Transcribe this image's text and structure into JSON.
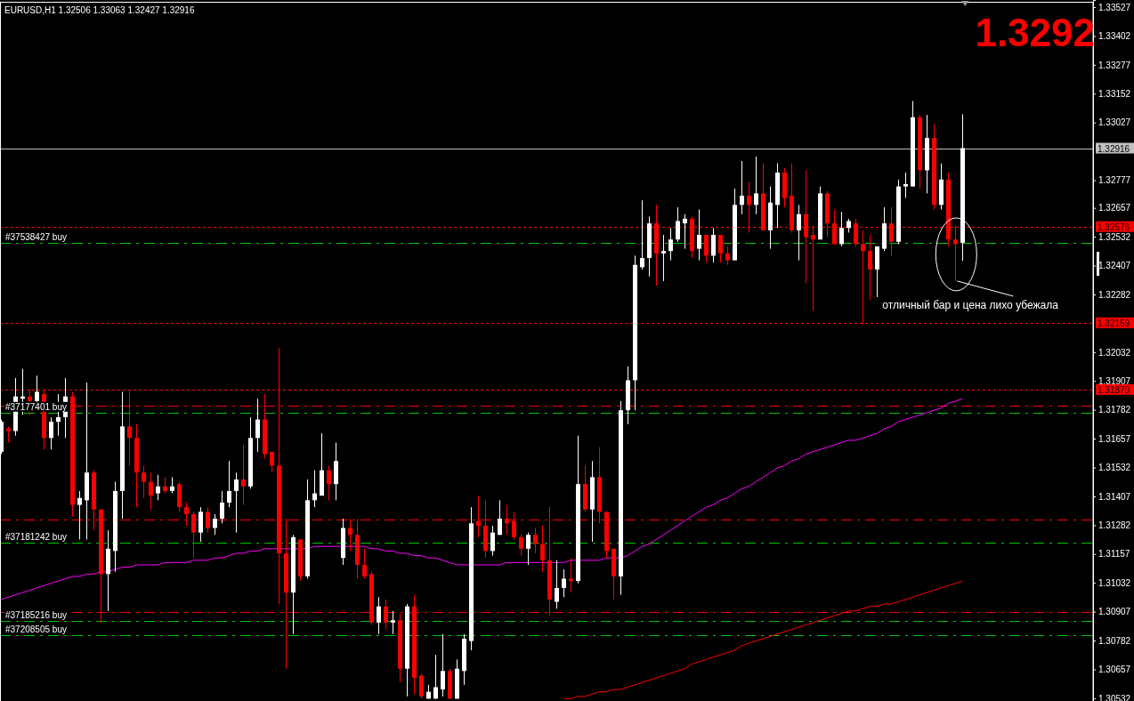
{
  "chart_data": {
    "type": "candlestick",
    "title": "EURUSD,H1  1.32506 1.33063 1.32427 1.32916",
    "categories": [
      null,
      null,
      null,
      null,
      null,
      null,
      null,
      null,
      null,
      null,
      null,
      null,
      null,
      null,
      null,
      null,
      null,
      null,
      null,
      null,
      null,
      null,
      null,
      null,
      null,
      null,
      null,
      null,
      null,
      null,
      null,
      null,
      null,
      null,
      null,
      null,
      null,
      null,
      null,
      null,
      null,
      null,
      null,
      null,
      null,
      null,
      null,
      null,
      null,
      null,
      null,
      null,
      null,
      null,
      null,
      null,
      null,
      null,
      null,
      null,
      null,
      null,
      null,
      null,
      null,
      null,
      null,
      null,
      null,
      null,
      null,
      null,
      null,
      null,
      null,
      null,
      null,
      null,
      null,
      null,
      null,
      null,
      null,
      null,
      null,
      null,
      null,
      null,
      null,
      null,
      null,
      null,
      null,
      null,
      null,
      null,
      null,
      null,
      null,
      null,
      null,
      null,
      null,
      null,
      null,
      null,
      null,
      null,
      null,
      null,
      null,
      null,
      null,
      null,
      null,
      null,
      null,
      null,
      null,
      null,
      null,
      null,
      null,
      null,
      null,
      null,
      null,
      null,
      null,
      null,
      null,
      null,
      null,
      null,
      null,
      null
    ],
    "ohlc": [
      [
        1.316,
        1.3174,
        1.3159,
        1.3173
      ],
      [
        1.317,
        1.3171,
        1.3164,
        1.3169
      ],
      [
        1.3169,
        1.3192,
        1.3167,
        1.3184
      ],
      [
        1.3183,
        1.3196,
        1.3176,
        1.3184
      ],
      [
        1.3184,
        1.3187,
        1.3176,
        1.3182
      ],
      [
        1.3182,
        1.3193,
        1.3178,
        1.3186
      ],
      [
        1.3185,
        1.3187,
        1.3161,
        1.3166
      ],
      [
        1.3166,
        1.3175,
        1.3161,
        1.3173
      ],
      [
        1.3173,
        1.3185,
        1.3167,
        1.3175
      ],
      [
        1.3175,
        1.3192,
        1.3166,
        1.3184
      ],
      [
        1.3184,
        1.3186,
        1.3132,
        1.3137
      ],
      [
        1.3137,
        1.3143,
        1.3122,
        1.314
      ],
      [
        1.3139,
        1.319,
        1.3122,
        1.3151
      ],
      [
        1.3151,
        1.3152,
        1.3126,
        1.3135
      ],
      [
        1.3135,
        1.3135,
        1.3086,
        1.3107
      ],
      [
        1.3107,
        1.3126,
        1.3091,
        1.3118
      ],
      [
        1.3117,
        1.3147,
        1.3108,
        1.3143
      ],
      [
        1.3143,
        1.3186,
        1.3131,
        1.3171
      ],
      [
        1.3171,
        1.3187,
        1.3154,
        1.3166
      ],
      [
        1.3166,
        1.3172,
        1.3136,
        1.3151
      ],
      [
        1.3151,
        1.3154,
        1.314,
        1.3147
      ],
      [
        1.3147,
        1.3151,
        1.3135,
        1.3141
      ],
      [
        1.3142,
        1.315,
        1.3139,
        1.3145
      ],
      [
        1.3145,
        1.3149,
        1.3142,
        1.3143
      ],
      [
        1.3143,
        1.3149,
        1.3142,
        1.3145
      ],
      [
        1.3146,
        1.3147,
        1.3134,
        1.3136
      ],
      [
        1.3136,
        1.3138,
        1.3128,
        1.3133
      ],
      [
        1.3133,
        1.3134,
        1.3114,
        1.3125
      ],
      [
        1.3125,
        1.3136,
        1.3121,
        1.3134
      ],
      [
        1.3134,
        1.3136,
        1.3125,
        1.3127
      ],
      [
        1.3127,
        1.3133,
        1.3124,
        1.3131
      ],
      [
        1.3131,
        1.3143,
        1.3129,
        1.3138
      ],
      [
        1.3138,
        1.3156,
        1.3136,
        1.3143
      ],
      [
        1.3143,
        1.3151,
        1.3125,
        1.3148
      ],
      [
        1.3148,
        1.3163,
        1.3137,
        1.3145
      ],
      [
        1.3145,
        1.3175,
        1.3144,
        1.3166
      ],
      [
        1.3166,
        1.3183,
        1.316,
        1.3174
      ],
      [
        1.3174,
        1.3185,
        1.3157,
        1.3159
      ],
      [
        1.316,
        1.316,
        1.3151,
        1.3154
      ],
      [
        1.3154,
        1.3205,
        1.3094,
        1.3116
      ],
      [
        1.3116,
        1.3131,
        1.3066,
        1.3099
      ],
      [
        1.3099,
        1.3124,
        1.3081,
        1.3123
      ],
      [
        1.3122,
        1.3122,
        1.3104,
        1.3106
      ],
      [
        1.3106,
        1.3148,
        1.3105,
        1.3139
      ],
      [
        1.3139,
        1.3152,
        1.3136,
        1.3142
      ],
      [
        1.3141,
        1.3168,
        1.3141,
        1.3152
      ],
      [
        1.3152,
        1.3154,
        1.3139,
        1.3146
      ],
      [
        1.3146,
        1.3164,
        1.3139,
        1.3156
      ],
      [
        1.3114,
        1.3131,
        1.3111,
        1.3127
      ],
      [
        1.3127,
        1.3131,
        1.3117,
        1.3124
      ],
      [
        1.3124,
        1.3131,
        1.3105,
        1.3111
      ],
      [
        1.3111,
        1.3118,
        1.3105,
        1.3106
      ],
      [
        1.3107,
        1.3108,
        1.3085,
        1.3086
      ],
      [
        1.3086,
        1.3097,
        1.3081,
        1.3093
      ],
      [
        1.3093,
        1.3096,
        1.3083,
        1.3086
      ],
      [
        1.3086,
        1.3091,
        1.3081,
        1.3087
      ],
      [
        1.3087,
        1.309,
        1.306,
        1.3066
      ],
      [
        1.3066,
        1.3094,
        1.3054,
        1.3093
      ],
      [
        1.3093,
        1.3098,
        1.3055,
        1.3062
      ],
      [
        1.3063,
        1.3064,
        1.3053,
        1.3054
      ],
      [
        1.3053,
        1.3059,
        1.3053,
        1.3056
      ],
      [
        1.3053,
        1.3072,
        1.3053,
        1.3058
      ],
      [
        1.3057,
        1.3081,
        1.3054,
        1.3065
      ],
      [
        1.3065,
        1.3066,
        1.3053,
        1.3053
      ],
      [
        1.3053,
        1.307,
        1.3053,
        1.3066
      ],
      [
        1.3065,
        1.3081,
        1.3059,
        1.3079
      ],
      [
        1.3078,
        1.3136,
        1.3074,
        1.3129
      ],
      [
        1.313,
        1.3141,
        1.3123,
        1.3128
      ],
      [
        1.3128,
        1.3139,
        1.3114,
        1.3117
      ],
      [
        1.3117,
        1.3128,
        1.3115,
        1.3125
      ],
      [
        1.3124,
        1.3139,
        1.3124,
        1.3131
      ],
      [
        1.3131,
        1.3137,
        1.3124,
        1.3129
      ],
      [
        1.313,
        1.3134,
        1.3122,
        1.3123
      ],
      [
        1.3123,
        1.3124,
        1.3115,
        1.3118
      ],
      [
        1.3118,
        1.3125,
        1.3111,
        1.3124
      ],
      [
        1.3124,
        1.3127,
        1.3116,
        1.312
      ],
      [
        1.312,
        1.3128,
        1.3108,
        1.3113
      ],
      [
        1.3113,
        1.3136,
        1.3089,
        1.3096
      ],
      [
        1.3095,
        1.3113,
        1.3092,
        1.3101
      ],
      [
        1.3101,
        1.3109,
        1.3097,
        1.3105
      ],
      [
        1.3105,
        1.3114,
        1.3099,
        1.3104
      ],
      [
        1.3104,
        1.3167,
        1.3103,
        1.3146
      ],
      [
        1.3146,
        1.3154,
        1.3134,
        1.3135
      ],
      [
        1.3135,
        1.3156,
        1.3121,
        1.3149
      ],
      [
        1.3149,
        1.3162,
        1.3129,
        1.3134
      ],
      [
        1.3134,
        1.3134,
        1.3114,
        1.3117
      ],
      [
        1.3118,
        1.3118,
        1.3096,
        1.3106
      ],
      [
        1.3106,
        1.3182,
        1.3098,
        1.3178
      ],
      [
        1.3178,
        1.3197,
        1.3172,
        1.3191
      ],
      [
        1.3191,
        1.3245,
        1.3178,
        1.3241
      ],
      [
        1.324,
        1.3269,
        1.3239,
        1.3244
      ],
      [
        1.3244,
        1.3262,
        1.3236,
        1.3259
      ],
      [
        1.3259,
        1.3267,
        1.3232,
        1.3246
      ],
      [
        1.3246,
        1.3254,
        1.3234,
        1.3247
      ],
      [
        1.3247,
        1.3257,
        1.3243,
        1.3252
      ],
      [
        1.3252,
        1.3266,
        1.3251,
        1.326
      ],
      [
        1.3259,
        1.3263,
        1.3248,
        1.3261
      ],
      [
        1.3261,
        1.3262,
        1.3244,
        1.3247
      ],
      [
        1.3248,
        1.3265,
        1.3243,
        1.3254
      ],
      [
        1.3254,
        1.3254,
        1.3242,
        1.3245
      ],
      [
        1.3245,
        1.3257,
        1.3242,
        1.3254
      ],
      [
        1.3254,
        1.3254,
        1.3242,
        1.3246
      ],
      [
        1.3246,
        1.3249,
        1.3241,
        1.3243
      ],
      [
        1.3243,
        1.3274,
        1.3243,
        1.3267
      ],
      [
        1.3267,
        1.3286,
        1.3263,
        1.3271
      ],
      [
        1.3271,
        1.3277,
        1.3255,
        1.3267
      ],
      [
        1.3267,
        1.3288,
        1.3263,
        1.3272
      ],
      [
        1.3272,
        1.3285,
        1.3256,
        1.3256
      ],
      [
        1.3256,
        1.3275,
        1.3248,
        1.3268
      ],
      [
        1.3267,
        1.3285,
        1.3257,
        1.3281
      ],
      [
        1.3281,
        1.3283,
        1.3266,
        1.327
      ],
      [
        1.3271,
        1.3285,
        1.3255,
        1.3256
      ],
      [
        1.3256,
        1.3267,
        1.3243,
        1.3263
      ],
      [
        1.3263,
        1.3282,
        1.3233,
        1.3253
      ],
      [
        1.3254,
        1.3258,
        1.3221,
        1.3252
      ],
      [
        1.3252,
        1.3275,
        1.3252,
        1.3272
      ],
      [
        1.3272,
        1.3273,
        1.3253,
        1.3259
      ],
      [
        1.3259,
        1.3265,
        1.325,
        1.325
      ],
      [
        1.325,
        1.3264,
        1.3249,
        1.3257
      ],
      [
        1.3257,
        1.3261,
        1.3255,
        1.326
      ],
      [
        1.3259,
        1.3261,
        1.3249,
        1.325
      ],
      [
        1.325,
        1.3256,
        1.3215,
        1.3247
      ],
      [
        1.3247,
        1.3254,
        1.3226,
        1.3239
      ],
      [
        1.3239,
        1.3249,
        1.3227,
        1.3249
      ],
      [
        1.3248,
        1.3266,
        1.3247,
        1.3259
      ],
      [
        1.3259,
        1.3266,
        1.3245,
        1.3251
      ],
      [
        1.3251,
        1.3278,
        1.325,
        1.3275
      ],
      [
        1.3275,
        1.3281,
        1.327,
        1.3276
      ],
      [
        1.3275,
        1.3312,
        1.3275,
        1.3305
      ],
      [
        1.3305,
        1.3306,
        1.3274,
        1.3282
      ],
      [
        1.3282,
        1.3306,
        1.3272,
        1.3296
      ],
      [
        1.3296,
        1.3302,
        1.3265,
        1.3267
      ],
      [
        1.3267,
        1.3285,
        1.3265,
        1.3278
      ],
      [
        1.3278,
        1.3281,
        1.3249,
        1.3252
      ],
      [
        1.3252,
        1.3258,
        1.3234,
        1.325
      ],
      [
        1.32506,
        1.33063,
        1.32427,
        1.32916
      ]
    ],
    "colors": [
      "#ffffff",
      "#ff0000",
      "#ffffff",
      "#ffffff",
      "#ff0000",
      "#ffffff",
      "#ff0000",
      "#ffffff",
      "#ffffff",
      "#ffffff",
      "#ff0000",
      "#ffffff",
      "#ffffff",
      "#ff0000",
      "#ff0000",
      "#ffffff",
      "#ffffff",
      "#ffffff",
      "#ff0000",
      "#ff0000",
      "#ff0000",
      "#ff0000",
      "#ffffff",
      "#ff0000",
      "#ffffff",
      "#ff0000",
      "#ff0000",
      "#ff0000",
      "#ffffff",
      "#ff0000",
      "#ffffff",
      "#ffffff",
      "#ffffff",
      "#ffffff",
      "#ff0000",
      "#ffffff",
      "#ffffff",
      "#ff0000",
      "#ff0000",
      "#ff0000",
      "#ff0000",
      "#ffffff",
      "#ff0000",
      "#ffffff",
      "#ffffff",
      "#ffffff",
      "#ff0000",
      "#ffffff",
      "#ffffff",
      "#ff0000",
      "#ff0000",
      "#ff0000",
      "#ff0000",
      "#ffffff",
      "#ff0000",
      "#ffffff",
      "#ff0000",
      "#ffffff",
      "#ff0000",
      "#ff0000",
      "#ffffff",
      "#ffffff",
      "#ffffff",
      "#ff0000",
      "#ffffff",
      "#ffffff",
      "#ffffff",
      "#ff0000",
      "#ff0000",
      "#ffffff",
      "#ffffff",
      "#ff0000",
      "#ff0000",
      "#ff0000",
      "#ffffff",
      "#ff0000",
      "#ff0000",
      "#ff0000",
      "#ffffff",
      "#ffffff",
      "#ff0000",
      "#ffffff",
      "#ff0000",
      "#ffffff",
      "#ff0000",
      "#ff0000",
      "#ff0000",
      "#ffffff",
      "#ffffff",
      "#ffffff",
      "#ffffff",
      "#ffffff",
      "#ff0000",
      "#ffffff",
      "#ffffff",
      "#ffffff",
      "#ffffff",
      "#ff0000",
      "#ffffff",
      "#ff0000",
      "#ffffff",
      "#ff0000",
      "#ff0000",
      "#ffffff",
      "#ffffff",
      "#ff0000",
      "#ffffff",
      "#ff0000",
      "#ffffff",
      "#ffffff",
      "#ff0000",
      "#ff0000",
      "#ffffff",
      "#ff0000",
      "#ff0000",
      "#ffffff",
      "#ff0000",
      "#ff0000",
      "#ffffff",
      "#ffffff",
      "#ff0000",
      "#ff0000",
      "#ff0000",
      "#ffffff",
      "#ffffff",
      "#ff0000",
      "#ffffff",
      "#ffffff",
      "#ffffff",
      "#ff0000",
      "#ffffff",
      "#ff0000",
      "#ffffff",
      "#ff0000",
      "#ff0000",
      "#ffffff"
    ],
    "series": [
      {
        "type": "line",
        "color": "#ff00ff",
        "values": [
          1.3096,
          1.3097,
          1.3098,
          1.3099,
          1.31,
          1.3101,
          1.3102,
          1.3103,
          1.3104,
          1.3105,
          1.3106,
          1.3106,
          1.3107,
          1.3107,
          1.3108,
          1.3108,
          1.3109,
          1.311,
          1.311,
          1.3111,
          1.3111,
          1.3111,
          1.3111,
          1.3112,
          1.3112,
          1.3112,
          1.3112,
          1.3113,
          1.3113,
          1.3113,
          1.3114,
          1.3114,
          1.3115,
          1.3116,
          1.3116,
          1.3117,
          1.3117,
          1.3118,
          1.3118,
          1.3118,
          1.3118,
          1.3118,
          1.3118,
          1.3118,
          1.3119,
          1.3119,
          1.3119,
          1.3119,
          1.3119,
          1.3119,
          1.3119,
          1.3119,
          1.3118,
          1.3118,
          1.3117,
          1.3117,
          1.3116,
          1.3116,
          1.3115,
          1.3115,
          1.3114,
          1.3114,
          1.3113,
          1.3112,
          1.3111,
          1.3111,
          1.3111,
          1.3111,
          1.3111,
          1.3111,
          1.3111,
          1.3112,
          1.3112,
          1.3112,
          1.3112,
          1.3112,
          1.3112,
          1.3112,
          1.3112,
          1.3112,
          1.3113,
          1.3113,
          1.3113,
          1.3113,
          1.3113,
          1.3114,
          1.3114,
          1.3114,
          1.3115,
          1.3117,
          1.3119,
          1.312,
          1.3122,
          1.3124,
          1.3126,
          1.3128,
          1.313,
          1.3132,
          1.3134,
          1.3136,
          1.3137,
          1.3139,
          1.314,
          1.3142,
          1.3144,
          1.3145,
          1.3147,
          1.3149,
          1.3151,
          1.3153,
          1.3154,
          1.3156,
          1.3157,
          1.3159,
          1.316,
          1.3161,
          1.3162,
          1.3163,
          1.3164,
          1.3165,
          1.3165,
          1.3166,
          1.3167,
          1.3168,
          1.317,
          1.3171,
          1.3173,
          1.3174,
          1.3175,
          1.3176,
          1.3177,
          1.3178,
          1.3179,
          1.3181,
          1.3182,
          1.3183
        ]
      },
      {
        "type": "line",
        "color": "#ff0000",
        "values": [
          null,
          null,
          null,
          null,
          null,
          null,
          null,
          null,
          null,
          null,
          null,
          null,
          null,
          null,
          null,
          null,
          null,
          null,
          null,
          null,
          null,
          null,
          null,
          null,
          null,
          null,
          null,
          null,
          null,
          null,
          null,
          null,
          null,
          null,
          null,
          null,
          null,
          null,
          null,
          null,
          null,
          null,
          null,
          null,
          null,
          null,
          null,
          null,
          null,
          null,
          null,
          null,
          null,
          null,
          null,
          null,
          null,
          null,
          null,
          null,
          null,
          null,
          null,
          null,
          null,
          null,
          null,
          null,
          null,
          null,
          null,
          null,
          null,
          null,
          null,
          null,
          null,
          null,
          null,
          1.3053,
          1.3053,
          1.3054,
          1.3054,
          1.3055,
          1.3056,
          1.3056,
          1.3057,
          1.3057,
          1.3058,
          1.3059,
          1.306,
          1.3061,
          1.3062,
          1.3063,
          1.3064,
          1.3065,
          1.3066,
          1.3068,
          1.3069,
          1.307,
          1.3071,
          1.3072,
          1.3073,
          1.3074,
          1.3076,
          1.3077,
          1.3078,
          1.3079,
          1.308,
          1.3081,
          1.3082,
          1.3083,
          1.3084,
          1.3085,
          1.3086,
          1.3087,
          1.3088,
          1.3089,
          1.309,
          1.3091,
          1.3091,
          1.3092,
          1.3093,
          1.3093,
          1.3094,
          1.3094,
          1.3095,
          1.3096,
          1.3097,
          1.3098,
          1.3099,
          1.31,
          1.3101,
          1.3102,
          1.3103,
          1.3104
        ]
      }
    ],
    "ylim": [
      1.3052,
      1.33558
    ],
    "yticks": [
      1.33527,
      1.33402,
      1.33277,
      1.33152,
      1.33027,
      1.32777,
      1.32657,
      1.32532,
      1.32407,
      1.32282,
      1.32032,
      1.31907,
      1.31782,
      1.31657,
      1.31532,
      1.31407,
      1.31282,
      1.31157,
      1.31032,
      1.30907,
      1.30782,
      1.30657,
      1.30532
    ],
    "tick_labels": "y",
    "ref_lines": [
      {
        "axis": "y",
        "value": 1.32916,
        "label": "1.32916",
        "color": "#c0c0c0",
        "line_style": "solid"
      },
      {
        "axis": "y",
        "value": 1.32576,
        "label": "1.32576",
        "color": "#ff0000",
        "line_style": "dotted"
      },
      {
        "axis": "y",
        "value": 1.32506,
        "label": "#37538427 buy",
        "color": "#00c800",
        "line_style": "dashdot"
      },
      {
        "axis": "y",
        "value": 1.32159,
        "label": "1.32159",
        "color": "#ff0000",
        "line_style": "dotted"
      },
      {
        "axis": "y",
        "value": 1.3187,
        "label": "1.31870",
        "color": "#ff0000",
        "line_style": "dotted"
      },
      {
        "axis": "y",
        "value": 1.31801,
        "color": "#ff0000",
        "line_style": "dashdot"
      },
      {
        "axis": "y",
        "value": 1.3177,
        "label": "#37177401 buy",
        "color": "#00c800",
        "line_style": "dashdot"
      },
      {
        "axis": "y",
        "value": 1.31305,
        "color": "#ff0000",
        "line_style": "dashdot"
      },
      {
        "axis": "y",
        "value": 1.31205,
        "label": "#37181242 buy",
        "color": "#00c800",
        "line_style": "dashdot"
      },
      {
        "axis": "y",
        "value": 1.30905,
        "color": "#ff0000",
        "line_style": "dashdot"
      },
      {
        "axis": "y",
        "value": 1.30867,
        "label": "#37185216 buy",
        "color": "#00c800",
        "line_style": "dashdot"
      },
      {
        "axis": "y",
        "value": 1.30805,
        "label": "#37208505 buy",
        "color": "#00c800",
        "line_style": "dashdot"
      }
    ],
    "annotations": [
      "1.3292",
      "отличный бар и цена лихо убежала"
    ]
  }
}
